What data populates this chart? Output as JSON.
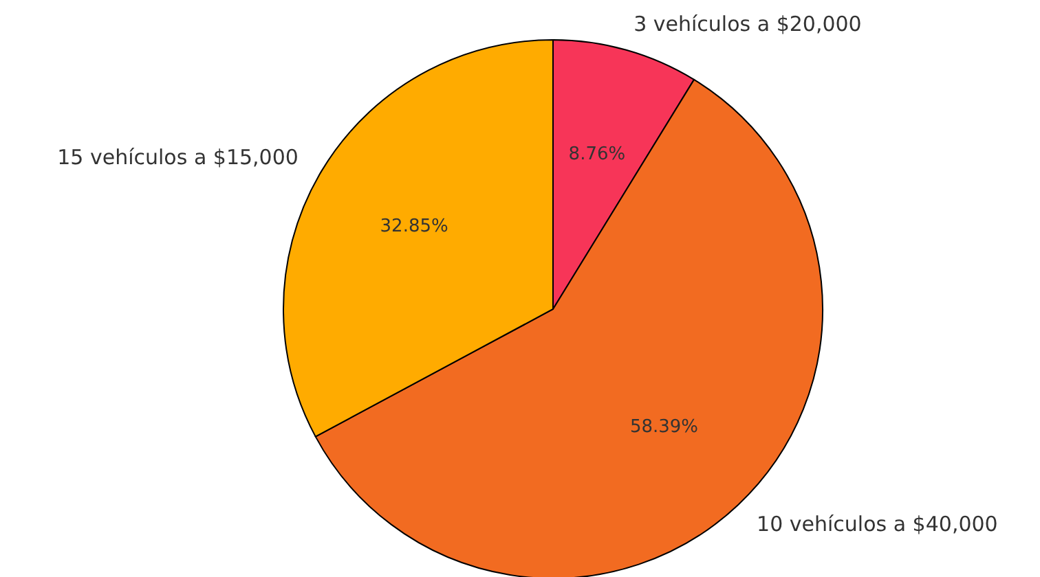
{
  "chart_data": {
    "type": "pie",
    "categories": [
      "3 vehículos a $20,000",
      "10 vehículos a $40,000",
      "15 vehículos a $15,000"
    ],
    "values": [
      8.76,
      58.39,
      32.85
    ],
    "colors": [
      "#f73558",
      "#f26b21",
      "#ffab00"
    ],
    "value_labels": [
      "8.76%",
      "58.39%",
      "32.85%"
    ]
  }
}
